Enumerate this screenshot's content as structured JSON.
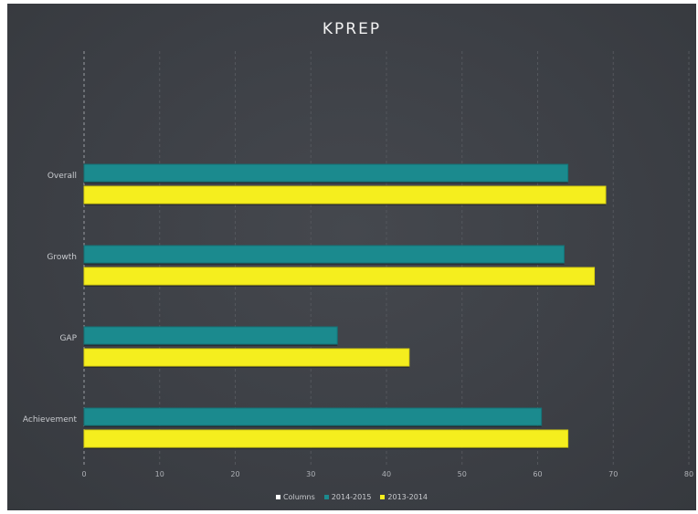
{
  "chart_data": {
    "type": "bar",
    "orientation": "horizontal",
    "title": "KPREP",
    "categories": [
      "Overall",
      "Growth",
      "GAP",
      "Achievement"
    ],
    "series": [
      {
        "name": "2014-2015",
        "values": [
          64,
          63.5,
          33.5,
          60.5
        ],
        "color": "#1b8a8e"
      },
      {
        "name": "2013-2014",
        "values": [
          69,
          67.5,
          43,
          64
        ],
        "color": "#f5ee1e"
      }
    ],
    "xlim": [
      0,
      80
    ],
    "xticks": [
      "0",
      "10",
      "20",
      "30",
      "40",
      "50",
      "60",
      "70",
      "80"
    ],
    "grid": true,
    "legend_position": "bottom",
    "legend": [
      {
        "label": "Columns",
        "color": "#ffffff"
      },
      {
        "label": "2014-2015",
        "color": "#1b8a8e"
      },
      {
        "label": "2013-2014",
        "color": "#f5ee1e"
      }
    ],
    "background": "#3e4147"
  }
}
